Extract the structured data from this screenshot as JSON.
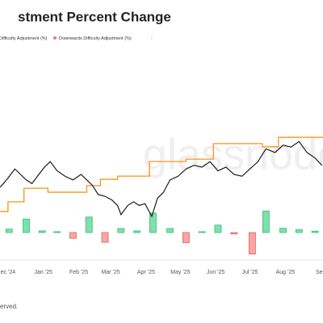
{
  "chart_data": {
    "type": "combo",
    "title": "stment Percent Change",
    "watermark": "glassnode",
    "footer": "erved.",
    "legend": [
      {
        "label": "Difficulty Adjustment (%)",
        "color": "#4cd08d"
      },
      {
        "label": "Downwards Difficulty Adjustment (%)",
        "color": "#f07b7b"
      },
      {
        "label": "-"
      }
    ],
    "xlim": [
      -7,
      276
    ],
    "xticks": [
      {
        "value": 0,
        "label": "ec '24"
      },
      {
        "value": 31,
        "label": "Jan '25"
      },
      {
        "value": 62,
        "label": "Feb '25"
      },
      {
        "value": 90,
        "label": "Mar '25"
      },
      {
        "value": 121,
        "label": "Apr '25"
      },
      {
        "value": 151,
        "label": "May '25"
      },
      {
        "value": 182,
        "label": "Jun '25"
      },
      {
        "value": 212,
        "label": "Jul '25"
      },
      {
        "value": 243,
        "label": "Aug '25"
      },
      {
        "value": 274,
        "label": "Sep"
      }
    ],
    "ylim": [
      54000,
      169000
    ],
    "y2lim": [
      87,
      160
    ],
    "y3lim": [
      -9,
      9
    ],
    "series": [
      {
        "type": "line",
        "axis": "y",
        "color": "#1a1a1a",
        "x": [
          -7,
          -4,
          0,
          6,
          11,
          16,
          21,
          27,
          32,
          37,
          43,
          50,
          57,
          64,
          69,
          74,
          79,
          85,
          91,
          96,
          99,
          105,
          110,
          115,
          120,
          126,
          131,
          136,
          142,
          149,
          156,
          163,
          170,
          177,
          184,
          191,
          198,
          205,
          212,
          219,
          226,
          234,
          241,
          248,
          255,
          262,
          269,
          275
        ],
        "values": [
          93000,
          95000,
          98000,
          103000,
          100000,
          97000,
          95000,
          100000,
          104000,
          107000,
          102000,
          99000,
          97000,
          100000,
          97000,
          94000,
          89000,
          88000,
          86000,
          83000,
          78000,
          83000,
          85000,
          83000,
          84000,
          77000,
          87000,
          90000,
          97000,
          99000,
          103000,
          105000,
          104000,
          107000,
          102000,
          104000,
          100000,
          99000,
          103000,
          107000,
          114000,
          112000,
          116000,
          115000,
          118000,
          112000,
          109000,
          105000
        ]
      },
      {
        "type": "step",
        "axis": "y2",
        "color": "#f7931a",
        "x": [
          -7,
          0,
          14,
          35,
          69,
          81,
          96,
          124,
          156,
          180,
          223,
          237
        ],
        "values": [
          103.3,
          106.7,
          111.4,
          110,
          112.3,
          114.5,
          115.6,
          120.7,
          121.5,
          126.9,
          125.8,
          129.1
        ]
      },
      {
        "type": "bar",
        "axis": "y3",
        "color": "#7fe0ac",
        "stroke": "#2fbf74",
        "x": [
          1,
          16,
          30,
          43,
          71,
          99,
          113,
          127,
          142,
          170,
          184,
          226,
          241,
          255,
          269
        ],
        "values": [
          1.2,
          4.7,
          0.6,
          0.3,
          5.4,
          1.4,
          0.6,
          6.8,
          1.4,
          0.3,
          2.6,
          7.5,
          1.5,
          1,
          0.5
        ]
      },
      {
        "type": "bar",
        "axis": "y3",
        "color": "#f7a5a5",
        "stroke": "#e85d5d",
        "x": [
          57,
          85,
          156,
          198,
          214
        ],
        "values": [
          -2,
          -3.4,
          -3.5,
          -0.5,
          -7.5
        ]
      }
    ]
  }
}
